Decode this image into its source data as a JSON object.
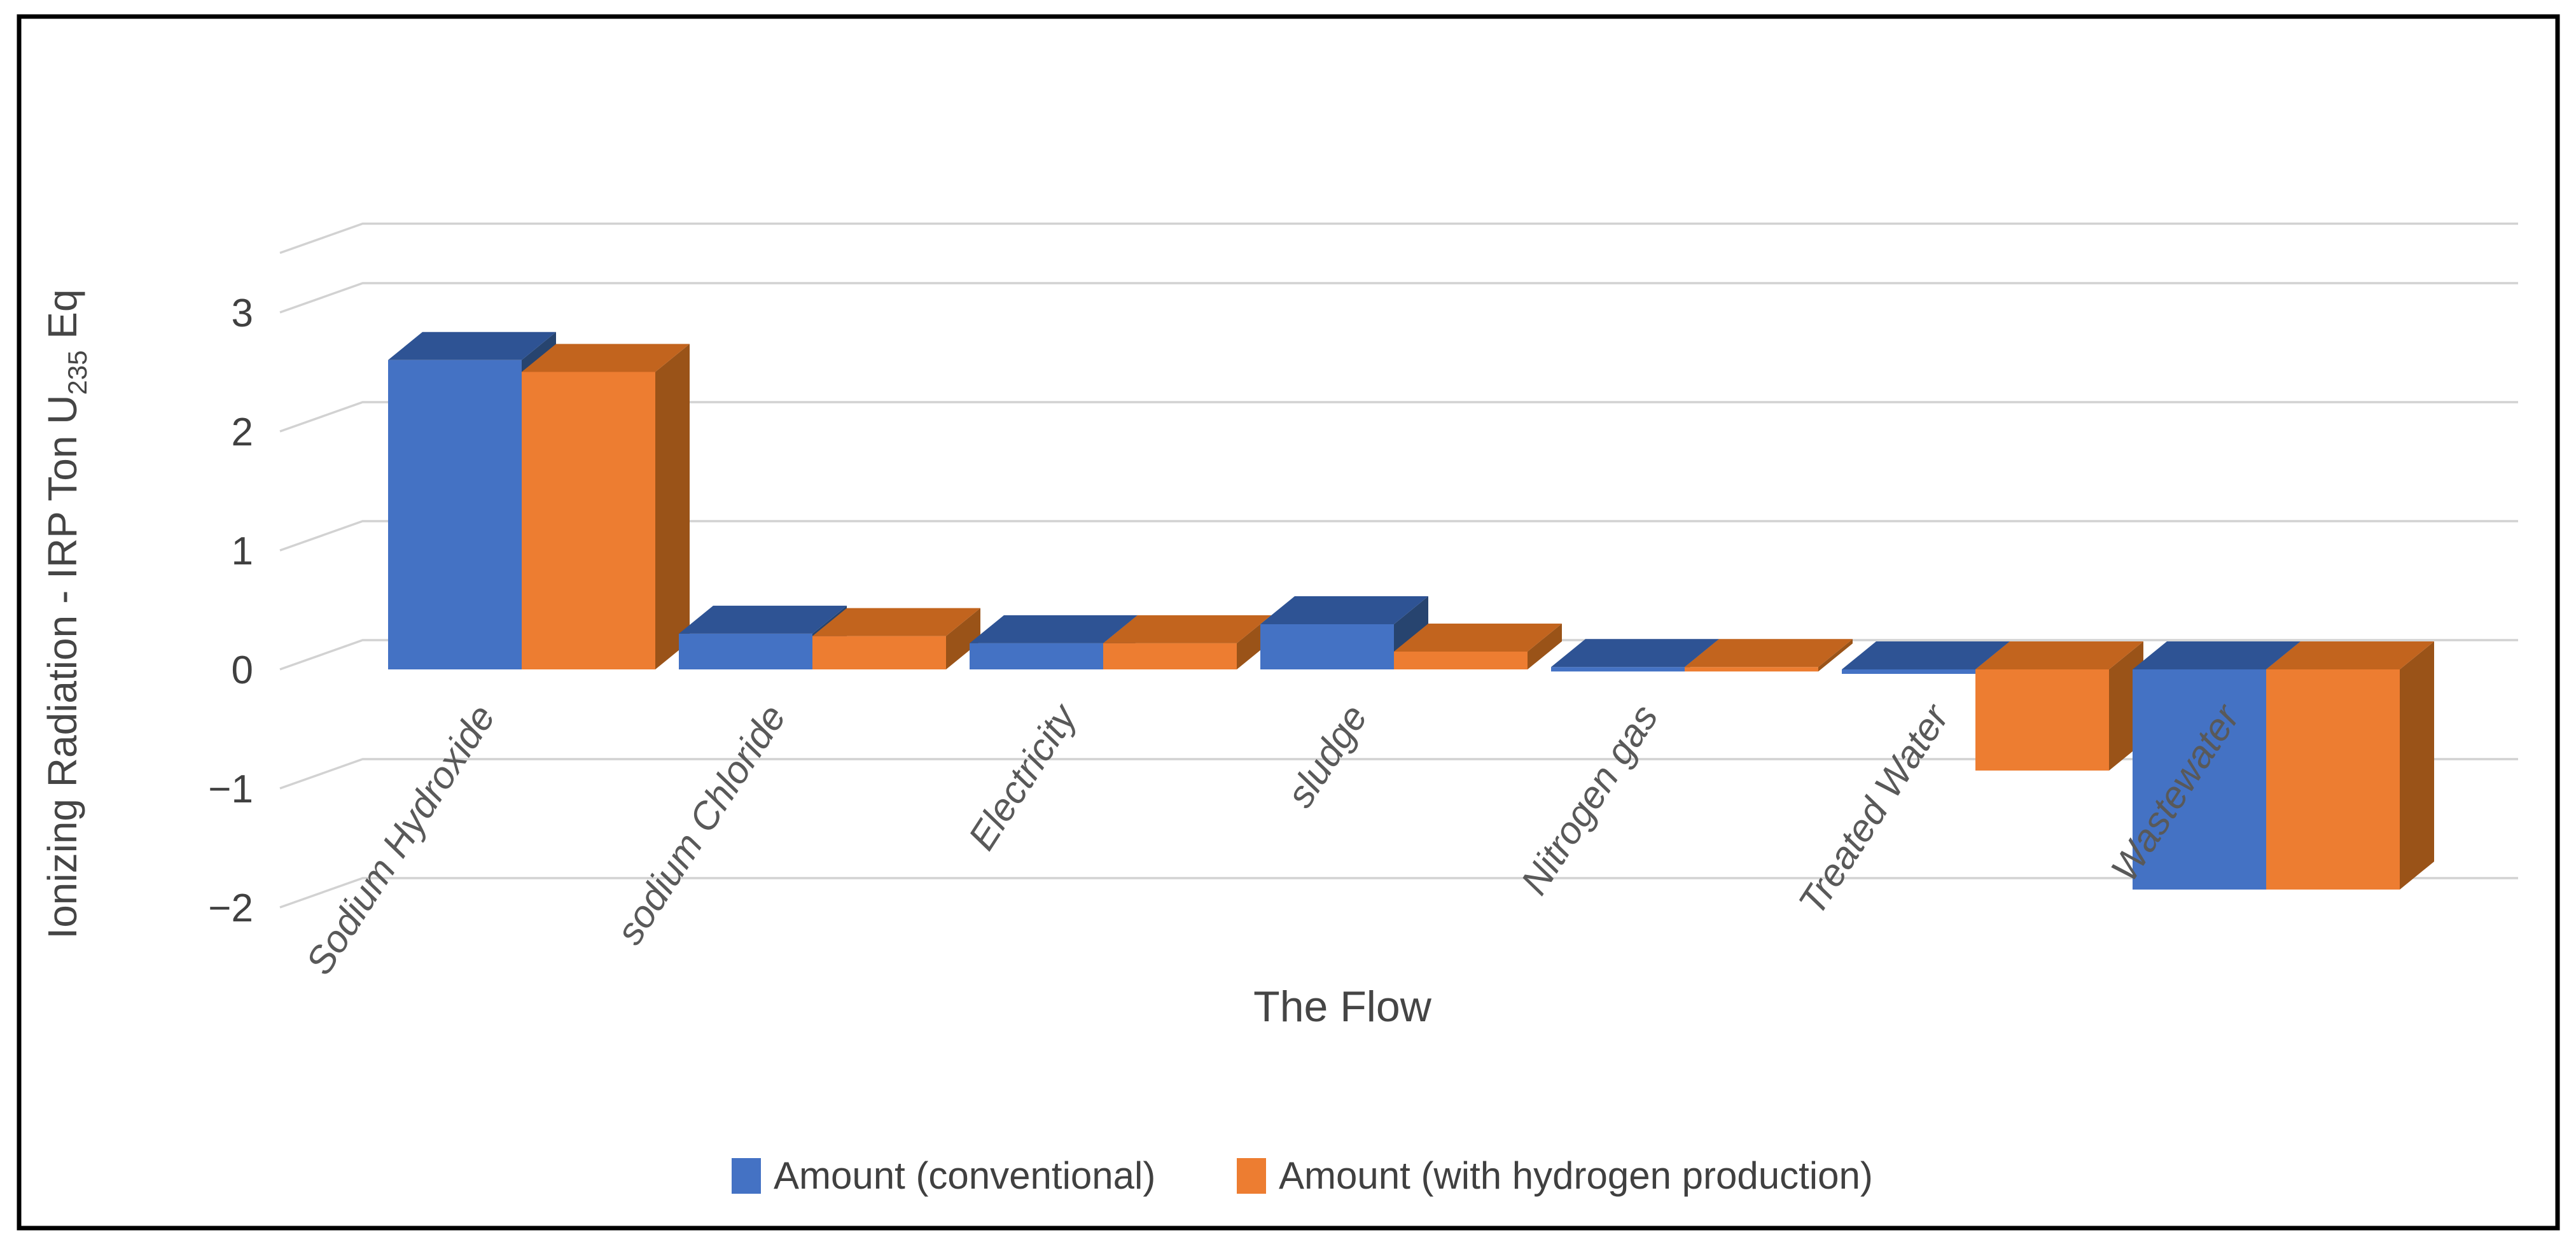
{
  "frame": {
    "border_color": "#000000",
    "background": "#ffffff"
  },
  "chart_data": {
    "type": "bar",
    "variant": "3d-clustered-column",
    "title": "",
    "xlabel": "The Flow",
    "ylabel": {
      "prefix": "Ionizing Radiation - IRP Ton U",
      "subscript": "235",
      "suffix": " Eq"
    },
    "categories": [
      "Sodium Hydroxide",
      "sodium Chloride",
      "Electricity",
      "sludge",
      "Nitrogen gas",
      "Treated Water",
      "Wastewater"
    ],
    "series": [
      {
        "name": "Amount (conventional)",
        "color": "#4472C4",
        "color_top": "#2E5394",
        "color_side": "#27446F",
        "values": [
          2.6,
          0.3,
          0.22,
          0.38,
          0.02,
          -0.03,
          -1.85
        ]
      },
      {
        "name": "Amount (with hydrogen production)",
        "color": "#ED7D31",
        "color_top": "#C2641E",
        "color_side": "#9A5318",
        "values": [
          2.5,
          0.28,
          0.22,
          0.15,
          0.02,
          -0.85,
          -1.85
        ]
      }
    ],
    "yticks": [
      3,
      2,
      1,
      0,
      -1,
      -2
    ],
    "ylim": [
      -2.5,
      3.5
    ],
    "grid": true,
    "legend_position": "bottom",
    "gridline_color": "#D2D2D2",
    "tick_color": "#404040",
    "label_color": "#595959",
    "axis_title_color": "#454545",
    "background": "#ffffff"
  }
}
